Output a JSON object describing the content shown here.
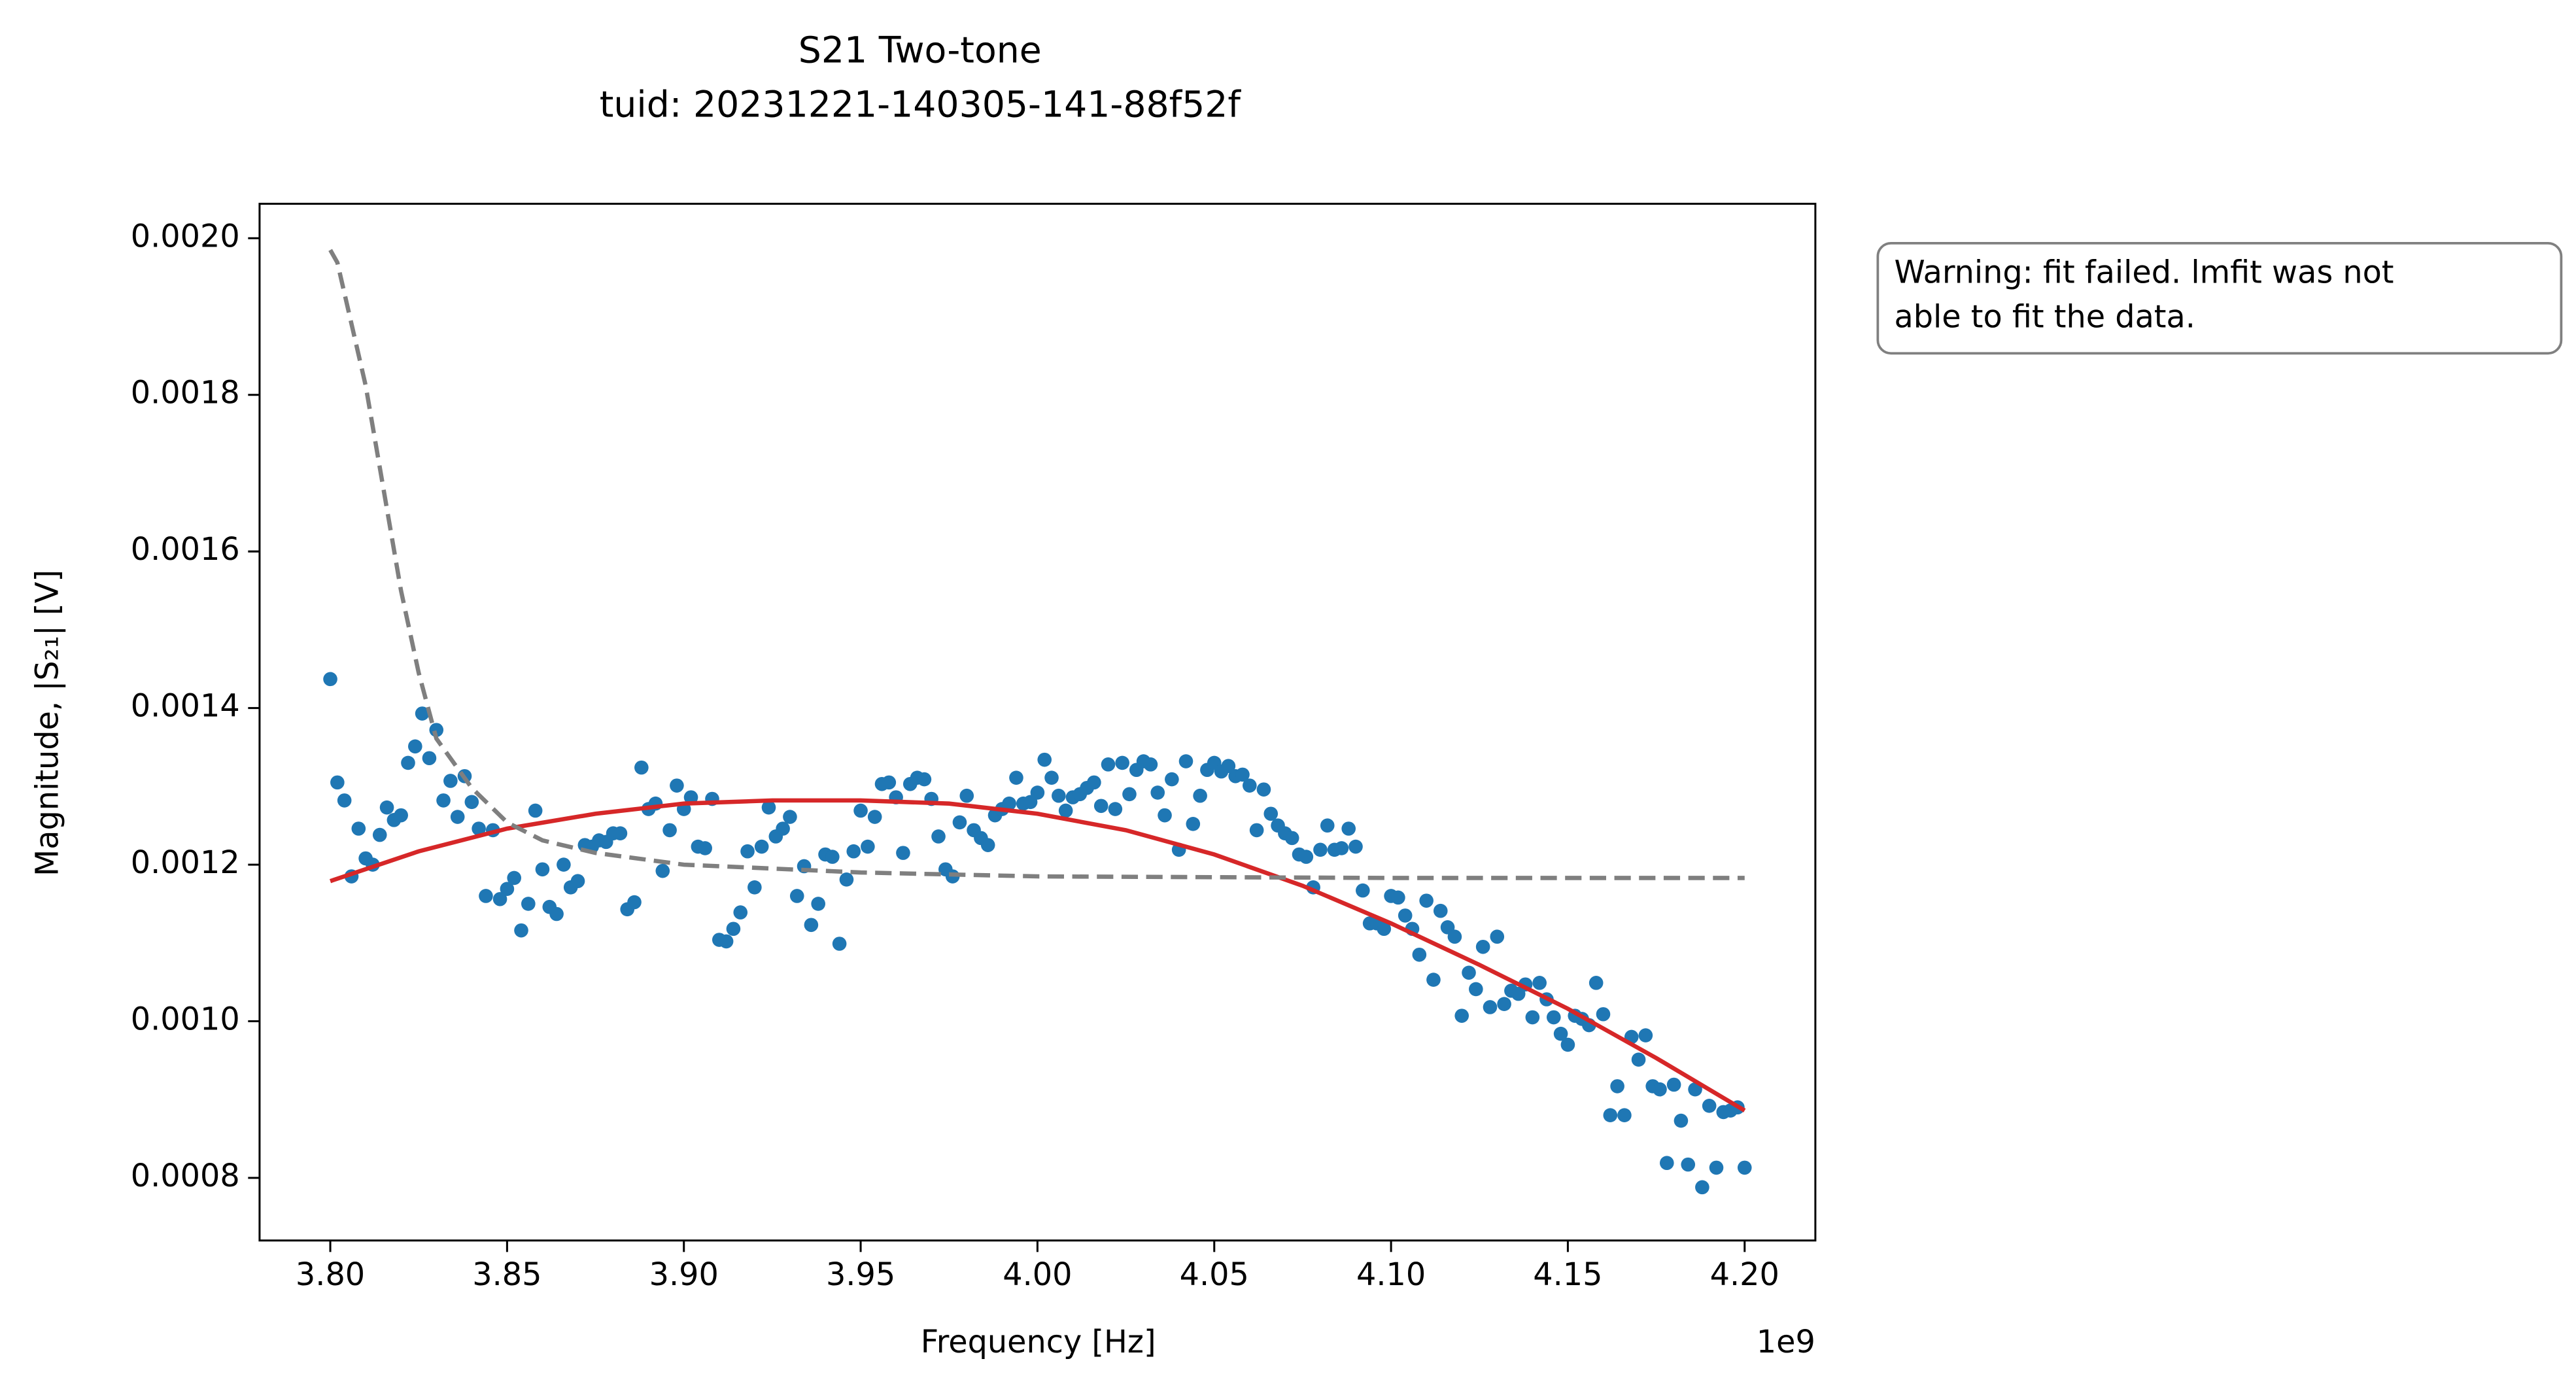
{
  "chart_data": {
    "type": "scatter",
    "title": [
      "S21 Two-tone",
      "tuid: 20231221-140305-141-88f52f"
    ],
    "xlabel": "Frequency [Hz]",
    "ylabel": "Magnitude, |S₂₁| [V]",
    "x_offset_label": "1e9",
    "annotation": [
      "Warning: fit failed. lmfit was not",
      "able to fit the data."
    ],
    "color": "#1f77b4",
    "xlim": [
      3780000000,
      4220000000
    ],
    "ylim": [
      0.00072,
      0.002044
    ],
    "xticks": [
      {
        "value": 3800000000,
        "label": "3.80"
      },
      {
        "value": 3850000000,
        "label": "3.85"
      },
      {
        "value": 3900000000,
        "label": "3.90"
      },
      {
        "value": 3950000000,
        "label": "3.95"
      },
      {
        "value": 4000000000,
        "label": "4.00"
      },
      {
        "value": 4050000000,
        "label": "4.05"
      },
      {
        "value": 4100000000,
        "label": "4.10"
      },
      {
        "value": 4150000000,
        "label": "4.15"
      },
      {
        "value": 4200000000,
        "label": "4.20"
      }
    ],
    "yticks": [
      0.0008,
      {
        "value": 0.001,
        "label": "0.0010"
      },
      0.0012,
      0.0014,
      0.0016,
      0.0018,
      {
        "value": 0.002,
        "label": "0.0020"
      }
    ],
    "x": [
      3800000000,
      3802000000,
      3804000000,
      3806000000,
      3808000000,
      3810000000,
      3812000000,
      3814000000,
      3816000000,
      3818000000,
      3820000000,
      3822000000,
      3824000000,
      3826000000,
      3828000000,
      3830000000,
      3832000000,
      3834000000,
      3836000000,
      3838000000,
      3840000000,
      3842000000,
      3844000000,
      3846000000,
      3848000000,
      3850000000,
      3852000000,
      3854000000,
      3856000000,
      3858000000,
      3860000000,
      3862000000,
      3864000000,
      3866000000,
      3868000000,
      3870000000,
      3872000000,
      3874000000,
      3876000000,
      3878000000,
      3880000000,
      3882000000,
      3884000000,
      3886000000,
      3888000000,
      3890000000,
      3892000000,
      3894000000,
      3896000000,
      3898000000,
      3900000000,
      3902000000,
      3904000000,
      3906000000,
      3908000000,
      3910000000,
      3912000000,
      3914000000,
      3916000000,
      3918000000,
      3920000000,
      3922000000,
      3924000000,
      3926000000,
      3928000000,
      3930000000,
      3932000000,
      3934000000,
      3936000000,
      3938000000,
      3940000000,
      3942000000,
      3944000000,
      3946000000,
      3948000000,
      3950000000,
      3952000000,
      3954000000,
      3956000000,
      3958000000,
      3960000000,
      3962000000,
      3964000000,
      3966000000,
      3968000000,
      3970000000,
      3972000000,
      3974000000,
      3976000000,
      3978000000,
      3980000000,
      3982000000,
      3984000000,
      3986000000,
      3988000000,
      3990000000,
      3992000000,
      3994000000,
      3996000000,
      3998000000,
      4000000000,
      4002000000,
      4004000000,
      4006000000,
      4008000000,
      4010000000,
      4012000000,
      4014000000,
      4016000000,
      4018000000,
      4020000000,
      4022000000,
      4024000000,
      4026000000,
      4028000000,
      4030000000,
      4032000000,
      4034000000,
      4036000000,
      4038000000,
      4040000000,
      4042000000,
      4044000000,
      4046000000,
      4048000000,
      4050000000,
      4052000000,
      4054000000,
      4056000000,
      4058000000,
      4060000000,
      4062000000,
      4064000000,
      4066000000,
      4068000000,
      4070000000,
      4072000000,
      4074000000,
      4076000000,
      4078000000,
      4080000000,
      4082000000,
      4084000000,
      4086000000,
      4088000000,
      4090000000,
      4092000000,
      4094000000,
      4096000000,
      4098000000,
      4100000000,
      4102000000,
      4104000000,
      4106000000,
      4108000000,
      4110000000,
      4112000000,
      4114000000,
      4116000000,
      4118000000,
      4120000000,
      4122000000,
      4124000000,
      4126000000,
      4128000000,
      4130000000,
      4132000000,
      4134000000,
      4136000000,
      4138000000,
      4140000000,
      4142000000,
      4144000000,
      4146000000,
      4148000000,
      4150000000,
      4152000000,
      4154000000,
      4156000000,
      4158000000,
      4160000000,
      4162000000,
      4164000000,
      4166000000,
      4168000000,
      4170000000,
      4172000000,
      4174000000,
      4176000000,
      4178000000,
      4180000000,
      4182000000,
      4184000000,
      4186000000,
      4188000000,
      4190000000,
      4192000000,
      4194000000,
      4196000000,
      4198000000,
      4200000000
    ],
    "values": [
      0.001437,
      0.001305,
      0.001282,
      0.001185,
      0.001246,
      0.001208,
      0.0012,
      0.001238,
      0.001273,
      0.001257,
      0.001263,
      0.00133,
      0.001351,
      0.001393,
      0.001336,
      0.001372,
      0.001282,
      0.001307,
      0.001261,
      0.001313,
      0.00128,
      0.001246,
      0.00116,
      0.001244,
      0.001156,
      0.001169,
      0.001183,
      0.001116,
      0.00115,
      0.001269,
      0.001194,
      0.001146,
      0.001137,
      0.0012,
      0.001171,
      0.001179,
      0.001225,
      0.001223,
      0.001231,
      0.001229,
      0.00124,
      0.00124,
      0.001143,
      0.001152,
      0.001324,
      0.001271,
      0.001278,
      0.001192,
      0.001244,
      0.001301,
      0.001271,
      0.001286,
      0.001223,
      0.001221,
      0.001284,
      0.001104,
      0.001102,
      0.001118,
      0.001139,
      0.001217,
      0.001171,
      0.001223,
      0.001273,
      0.001236,
      0.001246,
      0.001261,
      0.00116,
      0.001198,
      0.001123,
      0.00115,
      0.001213,
      0.00121,
      0.001099,
      0.001181,
      0.001217,
      0.001269,
      0.001223,
      0.001261,
      0.001303,
      0.001305,
      0.001286,
      0.001215,
      0.001303,
      0.001311,
      0.001309,
      0.001284,
      0.001236,
      0.001194,
      0.001185,
      0.001254,
      0.001288,
      0.001244,
      0.001234,
      0.001225,
      0.001263,
      0.001271,
      0.001278,
      0.001311,
      0.001278,
      0.00128,
      0.001292,
      0.001334,
      0.001311,
      0.001288,
      0.001269,
      0.001286,
      0.00129,
      0.001298,
      0.001305,
      0.001275,
      0.001328,
      0.001271,
      0.00133,
      0.00129,
      0.001321,
      0.001332,
      0.001328,
      0.001292,
      0.001263,
      0.001309,
      0.001219,
      0.001332,
      0.001252,
      0.001288,
      0.001321,
      0.00133,
      0.001319,
      0.001326,
      0.001313,
      0.001315,
      0.001301,
      0.001244,
      0.001296,
      0.001265,
      0.00125,
      0.00124,
      0.001234,
      0.001213,
      0.00121,
      0.001171,
      0.001219,
      0.00125,
      0.001219,
      0.001221,
      0.001246,
      0.001223,
      0.001167,
      0.001125,
      0.001125,
      0.001118,
      0.00116,
      0.001158,
      0.001135,
      0.001118,
      0.001085,
      0.001154,
      0.001053,
      0.001141,
      0.00112,
      0.001108,
      0.001007,
      0.001062,
      0.001041,
      0.001095,
      0.001018,
      0.001108,
      0.001022,
      0.001039,
      0.001035,
      0.001047,
      0.001005,
      0.001049,
      0.001028,
      0.001005,
      0.000984,
      0.00097,
      0.001007,
      0.001003,
      0.000995,
      0.001049,
      0.001009,
      0.00088,
      0.000917,
      0.00088,
      0.00098,
      0.000951,
      0.000982,
      0.000917,
      0.000913,
      0.000819,
      0.000919,
      0.000873,
      0.000817,
      0.000913,
      0.000788,
      0.000892,
      0.000813,
      0.000884,
      0.000886,
      0.00089,
      0.000813
    ],
    "lines": [
      {
        "color": "#d62728",
        "dashed": false,
        "x": [
          3800000000,
          3825000000,
          3850000000,
          3875000000,
          3900000000,
          3925000000,
          3950000000,
          3975000000,
          4000000000,
          4025000000,
          4050000000,
          4075000000,
          4100000000,
          4125000000,
          4150000000,
          4175000000,
          4200000000
        ],
        "values": [
          0.001179,
          0.001217,
          0.001246,
          0.001265,
          0.001278,
          0.001282,
          0.001282,
          0.001278,
          0.001265,
          0.001244,
          0.001213,
          0.001173,
          0.001125,
          0.001072,
          0.001016,
          0.000953,
          0.000886
        ]
      },
      {
        "color": "#7f7f7f",
        "dashed": true,
        "x": [
          3800000000,
          3802000000,
          3810000000,
          3820000000,
          3825000000,
          3830000000,
          3840000000,
          3850000000,
          3860000000,
          3875000000,
          3900000000,
          3950000000,
          4000000000,
          4100000000,
          4200000000
        ],
        "values": [
          0.001985,
          0.001969,
          0.001812,
          0.00155,
          0.001445,
          0.001361,
          0.001298,
          0.001254,
          0.001231,
          0.001215,
          0.0012,
          0.00119,
          0.001185,
          0.001183,
          0.001183
        ]
      }
    ]
  }
}
